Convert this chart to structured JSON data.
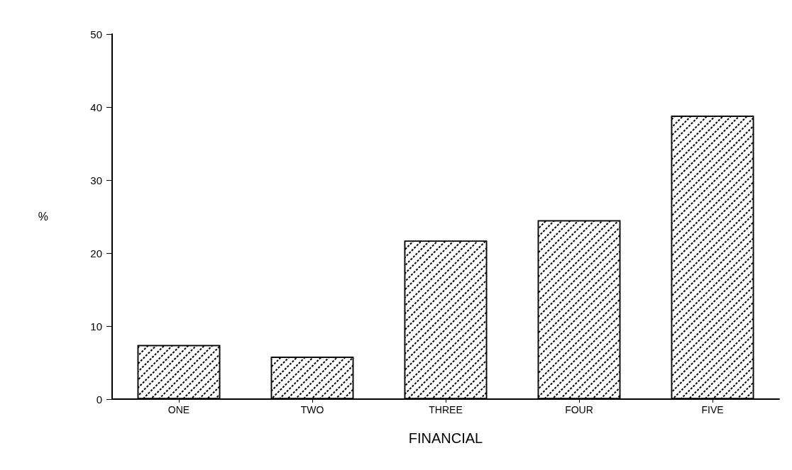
{
  "chart_data": {
    "type": "bar",
    "xlabel": "FINANCIAL",
    "ylabel": "%",
    "categories": [
      "ONE",
      "TWO",
      "THREE",
      "FOUR",
      "FIVE"
    ],
    "values": [
      7.4,
      5.8,
      21.7,
      24.5,
      38.8
    ],
    "color": "#ffffff",
    "ylim": [
      0,
      50
    ],
    "yticks": [
      0,
      10,
      20,
      30,
      40,
      50
    ],
    "grid": false
  }
}
